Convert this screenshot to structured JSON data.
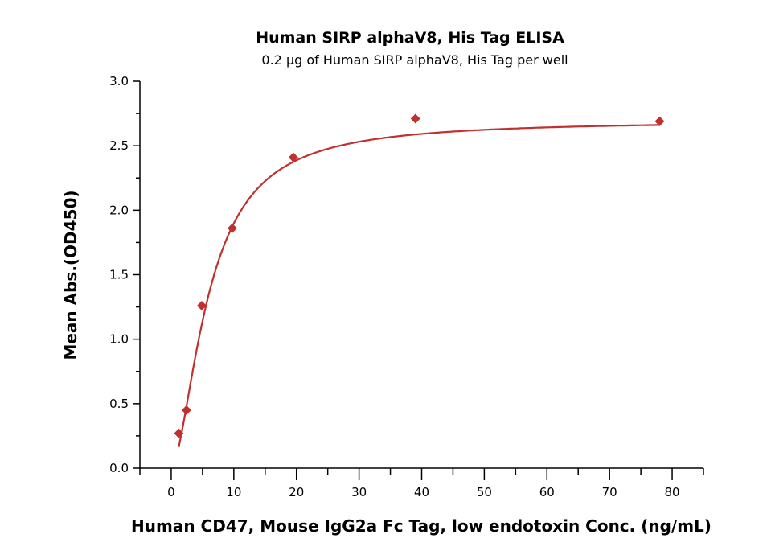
{
  "chart_data": {
    "type": "scatter",
    "title": "Human SIRP alphaV8, His Tag ELISA",
    "subtitle": "0.2 μg of Human SIRP alphaV8, His Tag per well",
    "xlabel": "Human CD47, Mouse IgG2a Fc Tag, low endotoxin Conc. (ng/mL)",
    "ylabel": "Mean Abs.(OD450)",
    "xlim": [
      -5,
      85
    ],
    "ylim": [
      0,
      3.0
    ],
    "xticks": [
      "0",
      "10",
      "20",
      "30",
      "40",
      "50",
      "60",
      "70",
      "80"
    ],
    "yticks": [
      "0.0",
      "0.5",
      "1.0",
      "1.5",
      "2.0",
      "2.5",
      "3.0"
    ],
    "grid": false,
    "color": "#c0302f",
    "marker": "diamond",
    "fit_curve": true,
    "series": [
      {
        "x": [
          1.22,
          2.44,
          4.88,
          9.75,
          19.5,
          39,
          78
        ],
        "y": [
          0.27,
          0.45,
          1.26,
          1.86,
          2.41,
          2.71,
          2.69
        ]
      }
    ]
  }
}
